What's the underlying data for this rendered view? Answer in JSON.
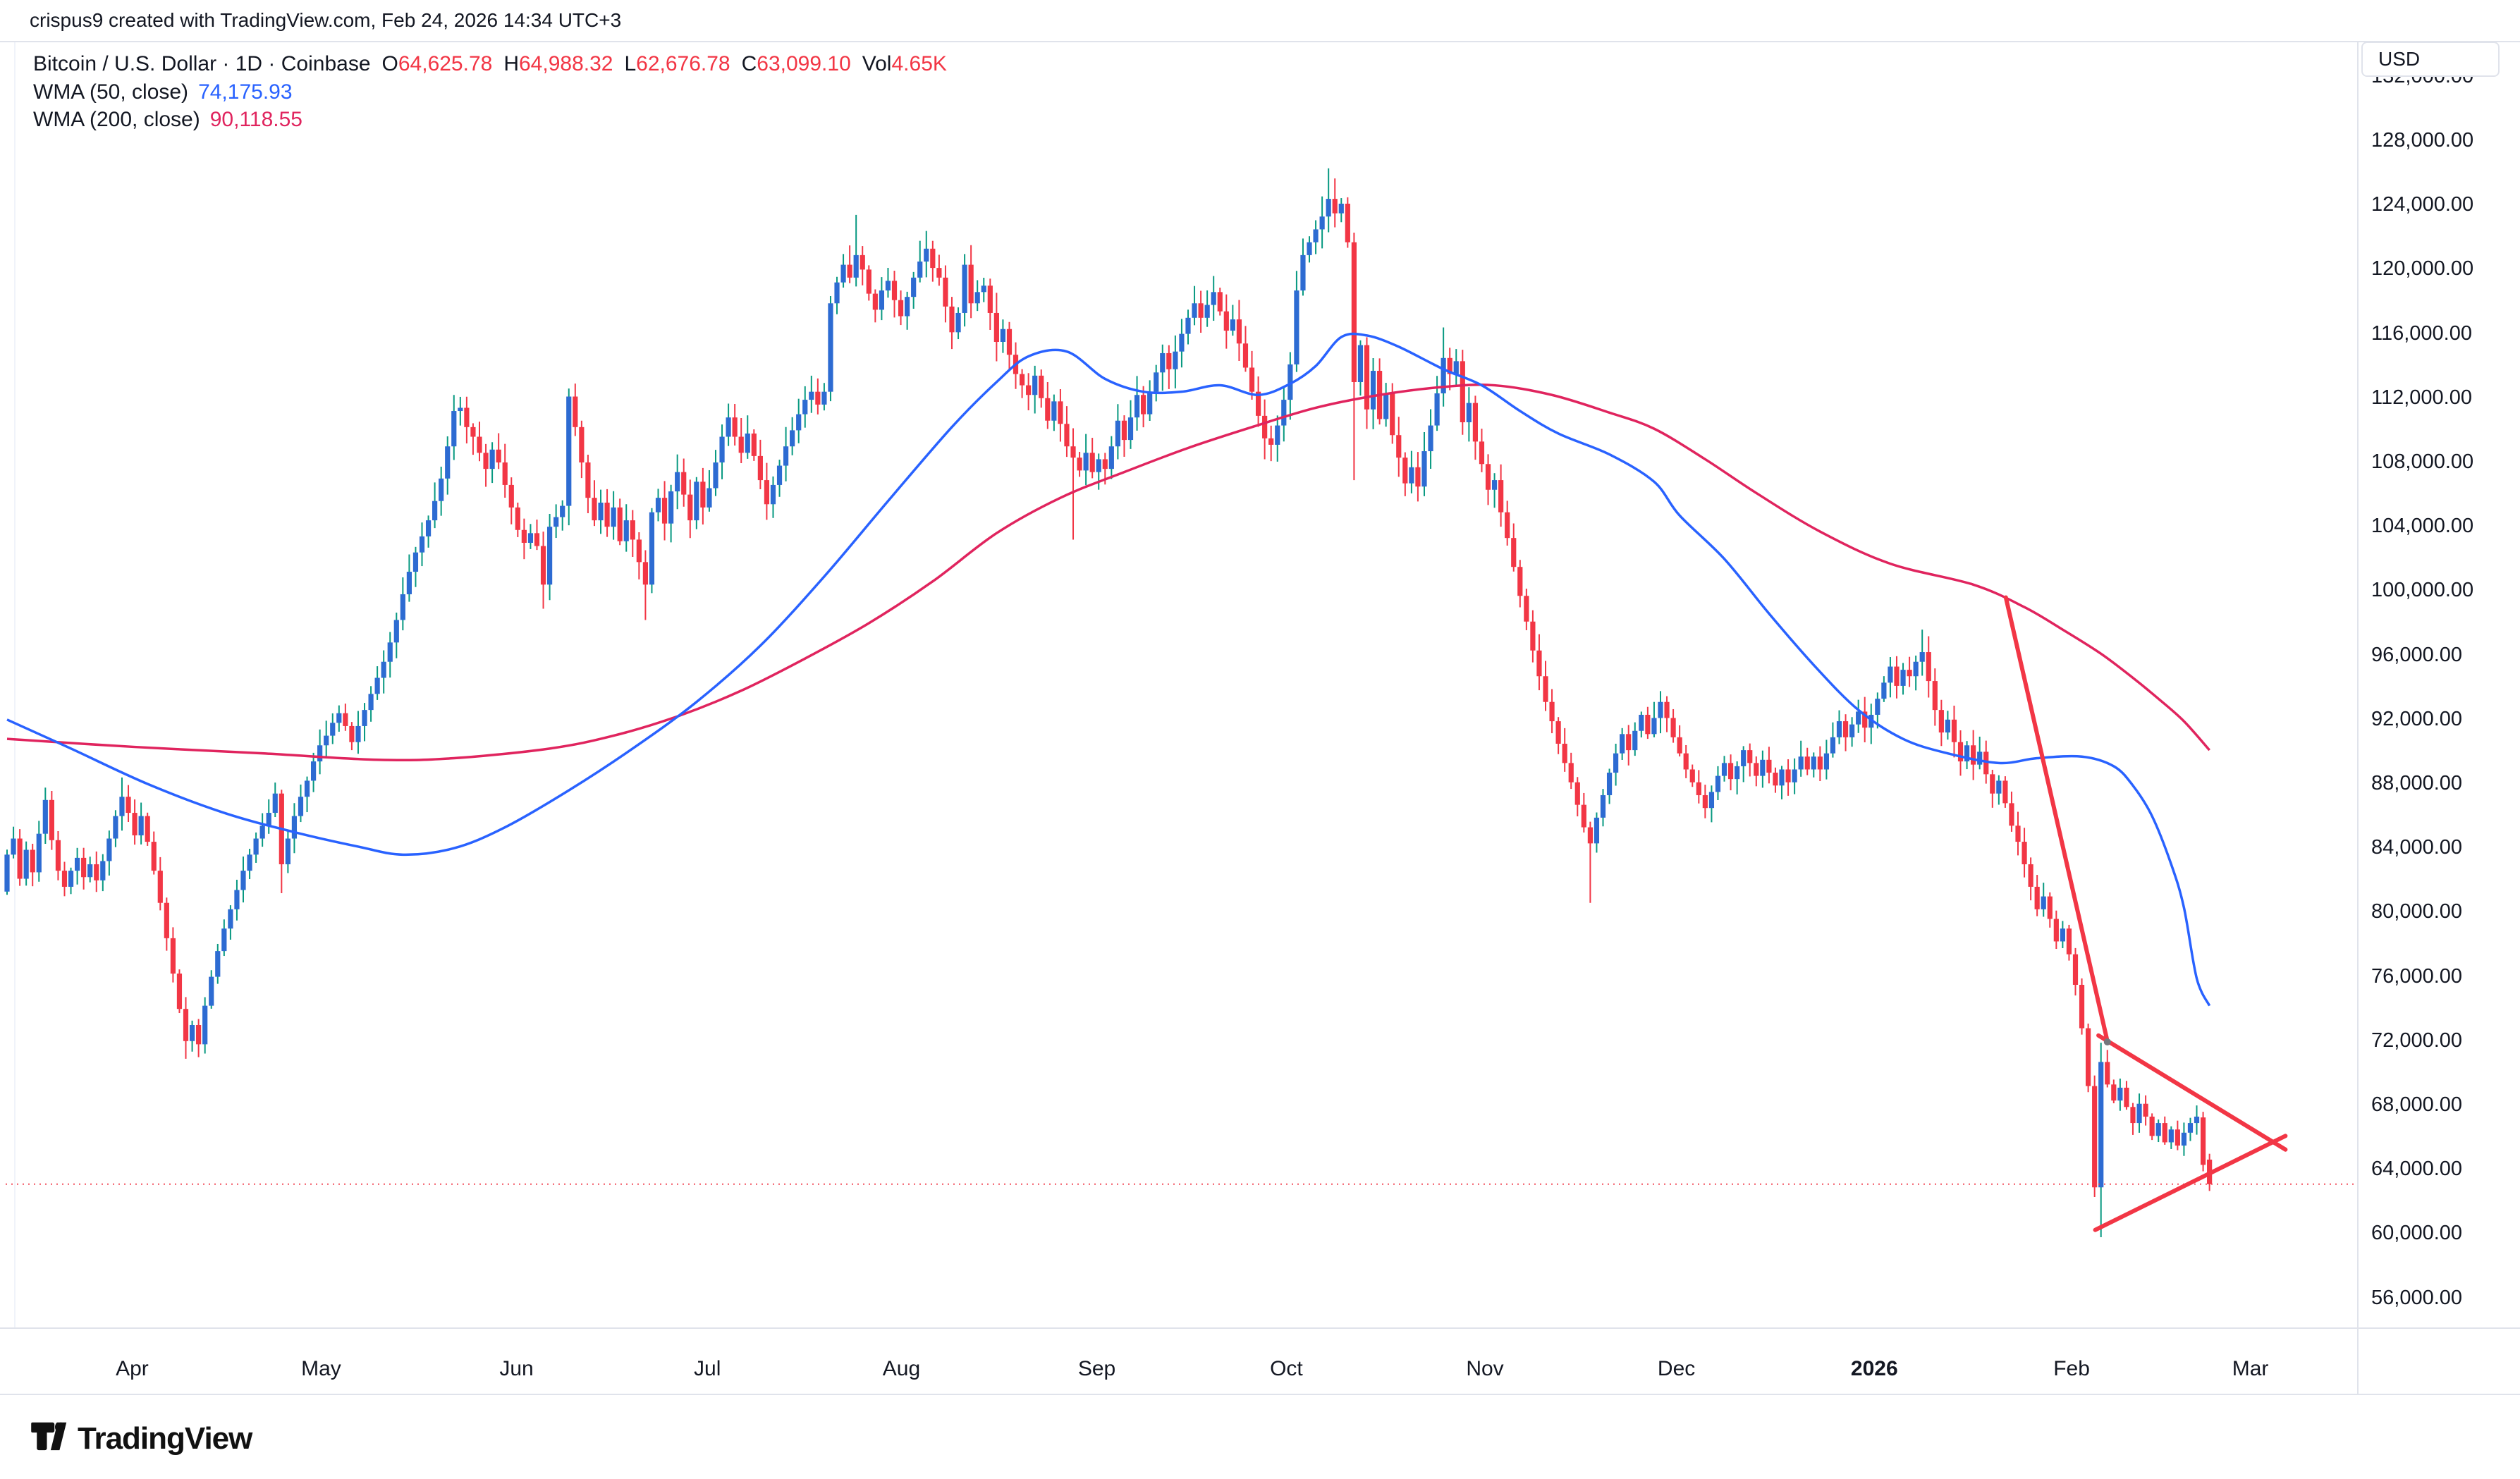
{
  "attribution": {
    "text": "crispus9 created with TradingView.com, Feb 24, 2026 14:34 UTC+3"
  },
  "legend": {
    "symbol_line": "Bitcoin / U.S. Dollar · 1D · Coinbase",
    "ohlc": [
      {
        "label": "O",
        "value": "64,625.78"
      },
      {
        "label": "H",
        "value": "64,988.32"
      },
      {
        "label": "L",
        "value": "62,676.78"
      },
      {
        "label": "C",
        "value": "63,099.10"
      },
      {
        "label": "Vol",
        "value": "4.65K"
      }
    ],
    "indicators": [
      {
        "label": "WMA (50, close)",
        "value": "74,175.93",
        "color": "#2962ff"
      },
      {
        "label": "WMA (200, close)",
        "value": "90,118.55",
        "color": "#e0245e"
      }
    ]
  },
  "price_axis": {
    "currency": "USD",
    "ticks_k": [
      132,
      128,
      124,
      120,
      116,
      112,
      108,
      104,
      100,
      96,
      92,
      88,
      84,
      80,
      76,
      72,
      68,
      64,
      60,
      56
    ]
  },
  "time_axis": {
    "ticks": [
      {
        "label": "Apr",
        "day": 19.6
      },
      {
        "label": "May",
        "day": 49.2
      },
      {
        "label": "Jun",
        "day": 79.8
      },
      {
        "label": "Jul",
        "day": 109.7
      },
      {
        "label": "Aug",
        "day": 140.1
      },
      {
        "label": "Sep",
        "day": 170.7
      },
      {
        "label": "Oct",
        "day": 200.4
      },
      {
        "label": "Nov",
        "day": 231.5
      },
      {
        "label": "Dec",
        "day": 261.5
      },
      {
        "label": "2026",
        "day": 292.5,
        "bold": true
      },
      {
        "label": "Feb",
        "day": 323.4
      },
      {
        "label": "Mar",
        "day": 351.4
      }
    ]
  },
  "logo": {
    "text": "TradingView"
  },
  "colors": {
    "up_body": "#2d6bd2",
    "up_wick": "#089981",
    "down": "#f23645",
    "wma50": "#2962ff",
    "wma200": "#e0245e",
    "drawing": "#f23645",
    "price_line": "#f23645",
    "anchor_dot": "#75777d",
    "text": "#131722",
    "border": "#e0e3eb"
  },
  "chart_data": {
    "type": "candlestick",
    "symbol": "Bitcoin / U.S. Dollar",
    "interval": "1D",
    "exchange": "Coinbase",
    "last_bar": {
      "open": 64625.78,
      "high": 64988.32,
      "low": 62676.78,
      "close": 63099.1,
      "volume": "4.65K",
      "date": "Feb 24, 2026"
    },
    "indicators": [
      {
        "name": "WMA",
        "length": 50,
        "source": "close",
        "value": 74175.93
      },
      {
        "name": "WMA",
        "length": 200,
        "source": "close",
        "value": 90118.55
      }
    ],
    "ylabel": "USD",
    "y_axis": {
      "min_k": 56,
      "max_k": 132,
      "step_k": 4
    },
    "x_axis_months": [
      "Apr",
      "May",
      "Jun",
      "Jul",
      "Aug",
      "Sep",
      "Oct",
      "Nov",
      "Dec",
      "2026",
      "Feb",
      "Mar"
    ],
    "grid": false,
    "current_price_k": 63.099,
    "first_open_k": 81.3,
    "closes_k": [
      83.6,
      84.6,
      82.1,
      83.9,
      82.5,
      84.9,
      87.0,
      84.5,
      82.6,
      81.6,
      82.6,
      83.4,
      82.2,
      83.0,
      82.0,
      83.2,
      84.6,
      86.0,
      87.2,
      86.2,
      84.8,
      86.0,
      84.4,
      82.6,
      80.6,
      78.4,
      76.2,
      74.0,
      72.0,
      73.0,
      71.8,
      74.2,
      76.0,
      77.6,
      79.0,
      80.2,
      81.4,
      82.6,
      83.6,
      84.6,
      85.4,
      86.2,
      87.4,
      83.0,
      84.6,
      86.0,
      87.2,
      88.2,
      89.4,
      90.4,
      91.0,
      91.8,
      92.4,
      91.6,
      90.6,
      91.6,
      92.6,
      93.6,
      94.6,
      95.6,
      96.8,
      98.2,
      99.8,
      101.2,
      102.4,
      103.4,
      104.4,
      105.6,
      107.0,
      109.0,
      111.2,
      111.4,
      110.2,
      109.6,
      108.6,
      107.6,
      108.8,
      108.0,
      106.6,
      105.2,
      103.8,
      103.0,
      103.6,
      102.8,
      100.4,
      104.0,
      104.6,
      105.3,
      112.1,
      110.2,
      108.0,
      105.8,
      104.4,
      105.5,
      104.0,
      105.2,
      103.1,
      104.4,
      103.2,
      101.8,
      100.4,
      104.9,
      105.8,
      104.2,
      106.2,
      107.4,
      106.0,
      104.4,
      106.8,
      105.2,
      106.4,
      108.0,
      109.6,
      110.8,
      109.6,
      108.6,
      109.8,
      108.4,
      106.9,
      105.4,
      106.6,
      107.8,
      109.0,
      110.0,
      111.0,
      111.9,
      112.4,
      111.6,
      112.4,
      117.9,
      119.2,
      120.3,
      119.5,
      120.9,
      120.0,
      118.5,
      117.5,
      118.7,
      119.3,
      118.1,
      117.1,
      118.3,
      119.5,
      120.5,
      121.3,
      120.1,
      119.5,
      117.7,
      116.1,
      117.3,
      120.3,
      117.9,
      118.6,
      119.0,
      117.3,
      115.5,
      116.3,
      114.7,
      113.5,
      112.8,
      112.2,
      113.4,
      112.0,
      110.6,
      111.8,
      110.4,
      109.0,
      108.3,
      107.5,
      108.6,
      107.4,
      108.2,
      107.6,
      109.0,
      110.6,
      109.4,
      110.8,
      112.2,
      111.0,
      112.4,
      113.6,
      114.8,
      113.8,
      114.9,
      116.0,
      117.0,
      117.9,
      117.0,
      117.8,
      118.6,
      117.4,
      116.2,
      116.9,
      115.4,
      113.9,
      112.4,
      110.9,
      109.5,
      109.1,
      110.3,
      111.9,
      114.1,
      118.7,
      120.9,
      121.7,
      122.5,
      123.3,
      124.4,
      123.5,
      124.1,
      121.7,
      113.0,
      115.3,
      111.3,
      113.7,
      110.7,
      112.3,
      109.7,
      108.3,
      106.7,
      107.7,
      106.5,
      108.7,
      110.3,
      112.3,
      114.5,
      113.5,
      114.3,
      110.5,
      111.7,
      109.3,
      107.9,
      106.3,
      106.9,
      104.9,
      103.3,
      101.5,
      99.7,
      98.1,
      96.3,
      94.7,
      93.1,
      91.9,
      90.5,
      89.3,
      88.1,
      86.7,
      85.3,
      84.3,
      85.9,
      87.3,
      88.7,
      89.9,
      91.1,
      90.1,
      91.3,
      92.3,
      91.1,
      92.1,
      93.1,
      92.1,
      90.9,
      89.9,
      88.9,
      88.1,
      87.3,
      86.5,
      87.5,
      88.5,
      89.3,
      88.3,
      89.1,
      90.1,
      89.3,
      88.5,
      89.5,
      88.7,
      87.9,
      88.9,
      88.1,
      88.9,
      89.7,
      88.9,
      89.7,
      88.9,
      89.9,
      90.9,
      91.9,
      90.9,
      91.7,
      92.5,
      91.5,
      92.3,
      93.3,
      94.3,
      95.3,
      94.1,
      95.1,
      94.7,
      95.6,
      96.2,
      94.4,
      92.6,
      91.2,
      92.0,
      90.6,
      89.4,
      90.4,
      89.2,
      90.0,
      88.6,
      87.4,
      88.2,
      86.8,
      85.4,
      84.4,
      83.0,
      81.6,
      80.2,
      81.0,
      79.6,
      78.2,
      79.0,
      77.4,
      75.5,
      72.8,
      69.2,
      62.9,
      70.7,
      69.3,
      68.3,
      69.1,
      67.9,
      66.9,
      68.1,
      67.3,
      66.1,
      66.9,
      65.7,
      66.5,
      65.5,
      66.3,
      66.9,
      67.3,
      64.3,
      63.1
    ],
    "candle_overrides": {
      "18": {
        "h": 88.4
      },
      "28": {
        "l": 70.9
      },
      "30": {
        "l": 71.0
      },
      "43": {
        "l": 81.2
      },
      "70": {
        "h": 112.2
      },
      "84": {
        "l": 98.9
      },
      "88": {
        "h": 112.6
      },
      "100": {
        "l": 98.2
      },
      "133": {
        "h": 123.4
      },
      "144": {
        "h": 122.4
      },
      "167": {
        "l": 103.2
      },
      "189": {
        "h": 119.6
      },
      "197": {
        "l": 108.2
      },
      "207": {
        "h": 126.3
      },
      "211": {
        "h": 122.3,
        "l": 106.9
      },
      "225": {
        "h": 116.4
      },
      "248": {
        "l": 80.6
      },
      "300": {
        "h": 97.6
      },
      "327": {
        "l": 62.3
      },
      "328": {
        "h": 71.9,
        "l": 59.8
      },
      "344": {
        "o": 67.25,
        "h": 67.6,
        "l": 63.9
      },
      "345": {
        "o": 64.626,
        "h": 64.988,
        "l": 62.677,
        "c": 63.099
      }
    },
    "wma50_path_k": [
      [
        0,
        92.0
      ],
      [
        10,
        90.2
      ],
      [
        22,
        88.0
      ],
      [
        34,
        86.2
      ],
      [
        45,
        85.0
      ],
      [
        55,
        84.1
      ],
      [
        62,
        83.6
      ],
      [
        70,
        84.0
      ],
      [
        78,
        85.3
      ],
      [
        88,
        87.6
      ],
      [
        98,
        90.2
      ],
      [
        108,
        93.1
      ],
      [
        118,
        96.6
      ],
      [
        128,
        100.9
      ],
      [
        138,
        105.6
      ],
      [
        148,
        110.2
      ],
      [
        155,
        113.0
      ],
      [
        160,
        114.6
      ],
      [
        166,
        114.9
      ],
      [
        172,
        113.2
      ],
      [
        178,
        112.4
      ],
      [
        184,
        112.4
      ],
      [
        190,
        112.8
      ],
      [
        196,
        112.2
      ],
      [
        201,
        112.9
      ],
      [
        205,
        114.0
      ],
      [
        209,
        115.8
      ],
      [
        213,
        115.9
      ],
      [
        218,
        115.2
      ],
      [
        225,
        113.8
      ],
      [
        231,
        112.8
      ],
      [
        237,
        111.2
      ],
      [
        243,
        109.8
      ],
      [
        251,
        108.5
      ],
      [
        258,
        106.8
      ],
      [
        262,
        104.7
      ],
      [
        269,
        102.0
      ],
      [
        276,
        98.6
      ],
      [
        283,
        95.4
      ],
      [
        290,
        92.6
      ],
      [
        297,
        90.8
      ],
      [
        304,
        89.9
      ],
      [
        312,
        89.3
      ],
      [
        318,
        89.6
      ],
      [
        325,
        89.7
      ],
      [
        330,
        89.1
      ],
      [
        333,
        87.9
      ],
      [
        336,
        86.0
      ],
      [
        339,
        83.0
      ],
      [
        341,
        80.3
      ],
      [
        343,
        75.9
      ],
      [
        345,
        74.2
      ]
    ],
    "wma200_path_k": [
      [
        0,
        90.8
      ],
      [
        20,
        90.3
      ],
      [
        40,
        89.9
      ],
      [
        58,
        89.5
      ],
      [
        70,
        89.6
      ],
      [
        85,
        90.2
      ],
      [
        95,
        91.0
      ],
      [
        105,
        92.2
      ],
      [
        115,
        93.8
      ],
      [
        125,
        95.8
      ],
      [
        135,
        98.0
      ],
      [
        145,
        100.6
      ],
      [
        155,
        103.6
      ],
      [
        165,
        105.8
      ],
      [
        175,
        107.4
      ],
      [
        185,
        108.9
      ],
      [
        195,
        110.2
      ],
      [
        205,
        111.4
      ],
      [
        215,
        112.2
      ],
      [
        225,
        112.7
      ],
      [
        233,
        112.8
      ],
      [
        242,
        112.2
      ],
      [
        251,
        111.1
      ],
      [
        258,
        110.1
      ],
      [
        266,
        108.2
      ],
      [
        274,
        106.1
      ],
      [
        284,
        103.7
      ],
      [
        295,
        101.7
      ],
      [
        308,
        100.4
      ],
      [
        316,
        99.0
      ],
      [
        322,
        97.6
      ],
      [
        328,
        96.1
      ],
      [
        333,
        94.6
      ],
      [
        337,
        93.3
      ],
      [
        341,
        91.9
      ],
      [
        345,
        90.1
      ]
    ],
    "drawings": {
      "steep_trendline": {
        "from": [
          313.1,
          99.6
        ],
        "to": [
          329.0,
          72.0
        ]
      },
      "triangle_upper": {
        "from": [
          327.6,
          72.35
        ],
        "to": [
          356.9,
          65.25
        ]
      },
      "triangle_lower": {
        "from": [
          327.1,
          60.25
        ],
        "to": [
          356.9,
          66.1
        ]
      },
      "anchor_point": [
        329.0,
        71.95
      ]
    }
  }
}
